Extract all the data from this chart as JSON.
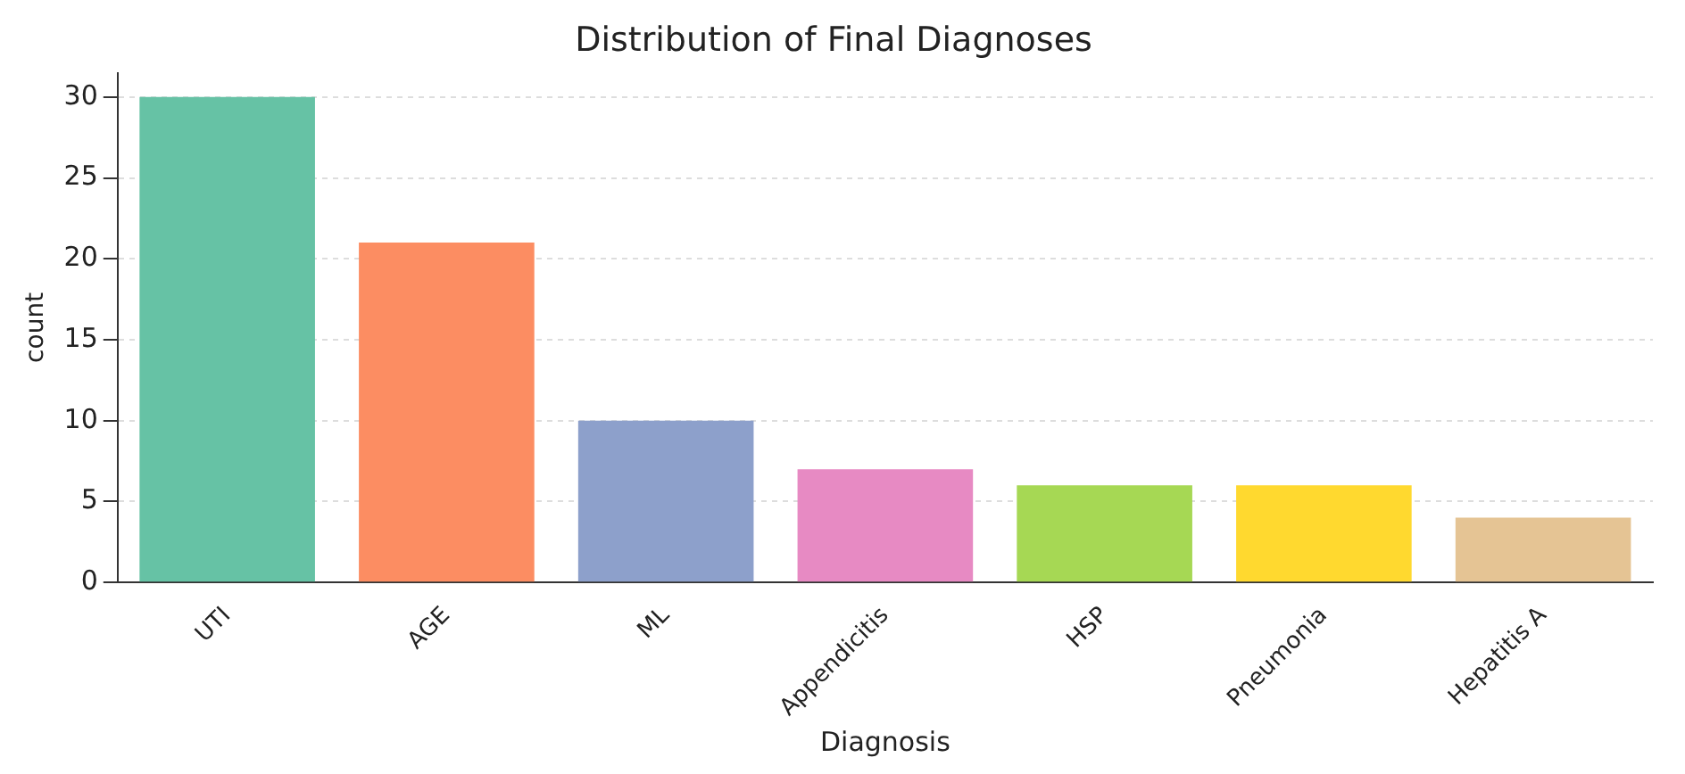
{
  "chart_data": {
    "type": "bar",
    "title": "Distribution of Final Diagnoses",
    "xlabel": "Diagnosis",
    "ylabel": "count",
    "categories": [
      "UTI",
      "AGE",
      "ML",
      "Appendicitis",
      "HSP",
      "Pneumonia",
      "Hepatitis A"
    ],
    "values": [
      30,
      21,
      10,
      7,
      6,
      6,
      4
    ],
    "colors": [
      "#66c2a5",
      "#fc8d62",
      "#8da0cb",
      "#e78ac3",
      "#a6d854",
      "#ffd92f",
      "#e5c494"
    ],
    "ylim": [
      0,
      31.5
    ],
    "yticks": [
      0,
      5,
      10,
      15,
      20,
      25,
      30
    ],
    "grid": "y",
    "legend": false
  }
}
